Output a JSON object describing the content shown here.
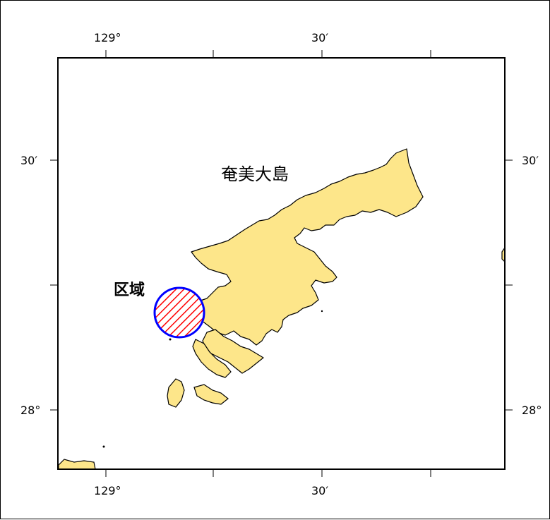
{
  "map": {
    "island_label": "奄美大島",
    "region_label": "区域",
    "land_color": "#fde68a",
    "coast_color": "#000000",
    "region_outline_color": "#0000ff",
    "region_hatch_color": "#ff0000"
  },
  "axes": {
    "top": [
      "129°",
      "30′"
    ],
    "bottom": [
      "129°",
      "30′"
    ],
    "left": [
      "30′",
      "28°"
    ],
    "right": [
      "30′",
      "28°"
    ]
  }
}
